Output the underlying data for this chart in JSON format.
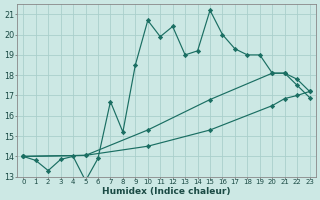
{
  "xlabel": "Humidex (Indice chaleur)",
  "bg_color": "#cce8e4",
  "grid_color": "#aacfcc",
  "line_color": "#1a6e62",
  "xlim": [
    -0.5,
    23.5
  ],
  "ylim": [
    13,
    21.5
  ],
  "xticks": [
    0,
    1,
    2,
    3,
    4,
    5,
    6,
    7,
    8,
    9,
    10,
    11,
    12,
    13,
    14,
    15,
    16,
    17,
    18,
    19,
    20,
    21,
    22,
    23
  ],
  "yticks": [
    13,
    14,
    15,
    16,
    17,
    18,
    19,
    20,
    21
  ],
  "series1_x": [
    0,
    1,
    2,
    3,
    4,
    5,
    6,
    7,
    8,
    9,
    10,
    11,
    12,
    13,
    14,
    15,
    16,
    17,
    18,
    19,
    20,
    21,
    22,
    23
  ],
  "series1_y": [
    14.0,
    13.8,
    13.3,
    13.85,
    14.0,
    12.8,
    13.9,
    16.7,
    15.2,
    18.5,
    20.7,
    19.9,
    20.4,
    19.0,
    19.2,
    21.2,
    20.0,
    19.3,
    19.0,
    19.0,
    18.1,
    18.1,
    17.5,
    16.9
  ],
  "series2_x": [
    0,
    5,
    10,
    15,
    20,
    21,
    22,
    23
  ],
  "series2_y": [
    14.0,
    14.05,
    15.3,
    16.8,
    18.1,
    18.1,
    17.8,
    17.2
  ],
  "series3_x": [
    0,
    5,
    10,
    15,
    20,
    21,
    22,
    23
  ],
  "series3_y": [
    14.0,
    14.05,
    14.5,
    15.3,
    16.5,
    16.85,
    17.0,
    17.2
  ]
}
